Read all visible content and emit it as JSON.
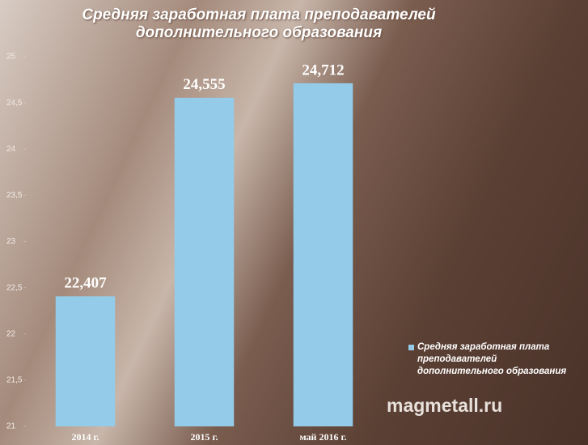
{
  "chart_data": {
    "type": "bar",
    "title": "Средняя заработная плата преподавателей дополнительного образования",
    "categories": [
      "2014 г.",
      "2015 г.",
      "май 2016 г."
    ],
    "series": [
      {
        "name": "Средняя заработная плата преподавателей дополнительного образования",
        "color": "#93cbe9",
        "values": [
          22.407,
          24.555,
          24.712
        ],
        "value_labels": [
          "22,407",
          "24,555",
          "24,712"
        ]
      }
    ],
    "ylim": [
      21,
      25
    ],
    "yticks": [
      21,
      {
        "value": 21.5,
        "label": "21,5"
      },
      22,
      {
        "value": 22.5,
        "label": "22,5"
      },
      23,
      {
        "value": 23.5,
        "label": "23,5"
      },
      24,
      {
        "value": 24.5,
        "label": "24,5"
      },
      25
    ],
    "legend": "right",
    "watermark": "magmetall.ru"
  }
}
